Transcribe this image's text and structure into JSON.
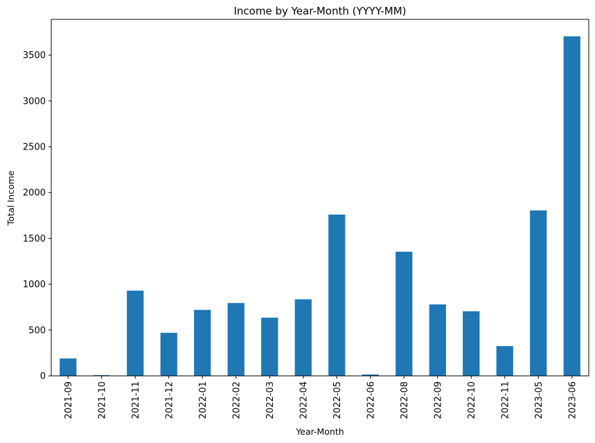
{
  "chart_data": {
    "type": "bar",
    "title": "Income by Year-Month (YYYY-MM)",
    "xlabel": "Year-Month",
    "ylabel": "Total Income",
    "categories": [
      "2021-09",
      "2021-10",
      "2021-11",
      "2021-12",
      "2022-01",
      "2022-02",
      "2022-03",
      "2022-04",
      "2022-05",
      "2022-06",
      "2022-08",
      "2022-09",
      "2022-10",
      "2022-11",
      "2023-05",
      "2023-06"
    ],
    "values": [
      190,
      8,
      930,
      470,
      720,
      795,
      635,
      835,
      1760,
      15,
      1355,
      780,
      705,
      325,
      1805,
      3705
    ],
    "ylim": [
      0,
      3890
    ],
    "yticks": [
      0,
      500,
      1000,
      1500,
      2000,
      2500,
      3000,
      3500
    ],
    "bar_color": "#1f77b4",
    "grid": false,
    "legend": "none"
  }
}
